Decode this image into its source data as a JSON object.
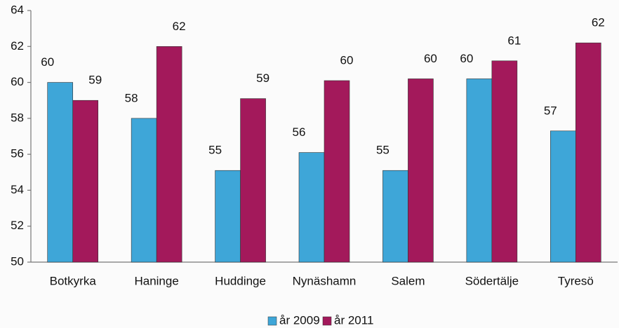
{
  "chart_data": {
    "type": "bar",
    "categories": [
      "Botkyrka",
      "Haninge",
      "Huddinge",
      "Nynäshamn",
      "Salem",
      "Södertälje",
      "Tyresö"
    ],
    "series": [
      {
        "name": "år 2009",
        "color": "#3ea6d8",
        "values": [
          60.0,
          58.0,
          55.1,
          56.1,
          55.1,
          60.2,
          57.3
        ],
        "value_labels": [
          "60",
          "58",
          "55",
          "56",
          "55",
          "60",
          "57"
        ]
      },
      {
        "name": "år 2011",
        "color": "#a3195b",
        "values": [
          59.0,
          62.0,
          59.1,
          60.1,
          60.2,
          61.2,
          62.2
        ],
        "value_labels": [
          "59",
          "62",
          "59",
          "60",
          "60",
          "61",
          "62"
        ]
      }
    ],
    "ylim": [
      50,
      64
    ],
    "yticks": [
      50,
      52,
      54,
      56,
      58,
      60,
      62,
      64
    ],
    "grid": false,
    "legend": "bottom"
  }
}
